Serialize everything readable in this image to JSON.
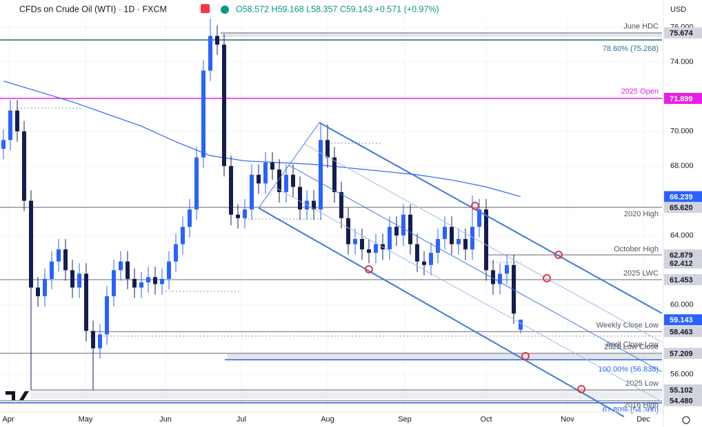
{
  "chart_data": {
    "type": "candlestick",
    "header": {
      "title": "CFDs on Crude Oil (WTI) · 1D · FXCM",
      "quote": "O58.572 H59.168 L58.357 C59.143 +0.571 (+0.97%)",
      "currency": "USD"
    },
    "up_color": "#2962ff",
    "down_color": "#131d4f",
    "xlim": [
      -0.5,
      95.5
    ],
    "ylim": [
      53.56,
      77.57
    ],
    "xticks": [
      {
        "value": 0.7,
        "label": "Apr"
      },
      {
        "value": 11.9,
        "label": "May"
      },
      {
        "value": 23.5,
        "label": "Jun"
      },
      {
        "value": 34.5,
        "label": "Jul"
      },
      {
        "value": 47,
        "label": "Aug"
      },
      {
        "value": 58.2,
        "label": "Sep"
      },
      {
        "value": 70,
        "label": "Oct"
      },
      {
        "value": 81.8,
        "label": "Nov"
      },
      {
        "value": 92.8,
        "label": "Dec"
      }
    ],
    "yticks": [
      {
        "value": 76,
        "label": "76.000"
      },
      {
        "value": 74,
        "label": "74.000"
      },
      {
        "value": 70,
        "label": "70.000"
      },
      {
        "value": 68,
        "label": "68.000"
      },
      {
        "value": 64,
        "label": "64.000"
      },
      {
        "value": 60,
        "label": "60.000"
      },
      {
        "value": 56,
        "label": "56.000"
      }
    ],
    "ohlc": [
      [
        69.0,
        70.1,
        68.4,
        69.5
      ],
      [
        69.5,
        71.8,
        68.9,
        71.2
      ],
      [
        71.2,
        71.8,
        69.4,
        70.0
      ],
      [
        70.0,
        70.6,
        65.4,
        66.0
      ],
      [
        66.0,
        66.6,
        55.1,
        61.0
      ],
      [
        61.0,
        61.6,
        59.9,
        60.5
      ],
      [
        60.5,
        62.1,
        59.9,
        61.5
      ],
      [
        61.5,
        63.1,
        60.9,
        62.5
      ],
      [
        62.5,
        63.8,
        61.9,
        63.2
      ],
      [
        63.2,
        63.8,
        61.4,
        62.0
      ],
      [
        62.0,
        62.6,
        60.4,
        61.0
      ],
      [
        61.0,
        62.4,
        60.4,
        61.8
      ],
      [
        61.8,
        62.4,
        57.9,
        58.5
      ],
      [
        58.5,
        59.1,
        55.1,
        57.5
      ],
      [
        57.5,
        58.9,
        56.9,
        58.3
      ],
      [
        58.3,
        61.1,
        57.7,
        60.5
      ],
      [
        60.5,
        62.6,
        59.9,
        62.0
      ],
      [
        62.0,
        63.1,
        61.4,
        62.5
      ],
      [
        62.5,
        63.1,
        60.9,
        61.5
      ],
      [
        61.5,
        62.1,
        60.4,
        61.0
      ],
      [
        61.0,
        61.9,
        60.4,
        61.3
      ],
      [
        61.3,
        62.2,
        60.7,
        61.6
      ],
      [
        61.6,
        62.2,
        60.6,
        61.2
      ],
      [
        61.2,
        62.1,
        60.6,
        61.5
      ],
      [
        61.5,
        63.1,
        60.9,
        62.5
      ],
      [
        62.5,
        64.1,
        61.9,
        63.5
      ],
      [
        63.5,
        65.1,
        62.9,
        64.5
      ],
      [
        64.5,
        66.1,
        63.9,
        65.5
      ],
      [
        65.5,
        69.1,
        64.9,
        68.5
      ],
      [
        68.5,
        74.1,
        67.9,
        73.5
      ],
      [
        73.5,
        77.5,
        72.9,
        75.5
      ],
      [
        75.5,
        76.1,
        74.4,
        75.0
      ],
      [
        75.0,
        75.6,
        67.4,
        68.0
      ],
      [
        68.0,
        68.6,
        64.6,
        65.2
      ],
      [
        65.2,
        65.8,
        64.4,
        65.0
      ],
      [
        65.0,
        66.1,
        64.4,
        65.5
      ],
      [
        65.5,
        68.1,
        64.9,
        67.5
      ],
      [
        67.5,
        68.1,
        66.4,
        67.0
      ],
      [
        67.0,
        68.8,
        66.4,
        68.2
      ],
      [
        68.2,
        68.8,
        67.2,
        67.8
      ],
      [
        67.8,
        68.4,
        65.9,
        66.5
      ],
      [
        66.5,
        68.1,
        65.9,
        67.5
      ],
      [
        67.5,
        68.1,
        66.2,
        66.8
      ],
      [
        66.8,
        67.4,
        64.9,
        65.5
      ],
      [
        65.5,
        66.6,
        64.9,
        66.0
      ],
      [
        66.0,
        66.6,
        64.9,
        65.5
      ],
      [
        65.5,
        70.5,
        64.9,
        69.5
      ],
      [
        69.5,
        70.4,
        67.9,
        68.5
      ],
      [
        68.5,
        69.1,
        65.9,
        66.5
      ],
      [
        66.5,
        67.1,
        64.4,
        65.0
      ],
      [
        65.0,
        65.6,
        62.9,
        63.5
      ],
      [
        63.5,
        64.4,
        62.9,
        63.8
      ],
      [
        63.8,
        64.4,
        62.6,
        63.2
      ],
      [
        63.2,
        63.8,
        62.4,
        63.0
      ],
      [
        63.0,
        64.1,
        62.4,
        63.5
      ],
      [
        63.5,
        64.1,
        62.6,
        63.2
      ],
      [
        63.2,
        65.1,
        62.6,
        64.5
      ],
      [
        64.5,
        65.1,
        63.4,
        64.0
      ],
      [
        64.0,
        65.8,
        63.4,
        65.2
      ],
      [
        65.2,
        65.8,
        62.9,
        63.5
      ],
      [
        63.5,
        64.1,
        61.9,
        62.5
      ],
      [
        62.5,
        63.1,
        61.7,
        62.3
      ],
      [
        62.3,
        63.6,
        61.7,
        63.0
      ],
      [
        63.0,
        64.4,
        62.4,
        63.8
      ],
      [
        63.8,
        65.1,
        63.2,
        64.5
      ],
      [
        64.5,
        65.1,
        62.9,
        63.5
      ],
      [
        63.5,
        64.4,
        62.9,
        63.8
      ],
      [
        63.8,
        64.4,
        62.6,
        63.2
      ],
      [
        63.2,
        66.3,
        62.6,
        64.5
      ],
      [
        64.5,
        66.1,
        63.9,
        65.5
      ],
      [
        65.5,
        66.1,
        61.4,
        62.0
      ],
      [
        62.0,
        62.6,
        60.6,
        61.2
      ],
      [
        61.2,
        62.4,
        60.6,
        61.8
      ],
      [
        61.8,
        62.9,
        61.2,
        62.3
      ],
      [
        62.3,
        62.9,
        58.9,
        59.5
      ],
      [
        58.572,
        59.168,
        58.357,
        59.143
      ]
    ],
    "moving_average": {
      "color": "#2962ff",
      "x": [
        0,
        5,
        10,
        15,
        20,
        25,
        30,
        35,
        40,
        45,
        50,
        55,
        60,
        65,
        70,
        75
      ],
      "values": [
        72.9,
        72.3,
        71.7,
        71.0,
        70.3,
        69.4,
        68.6,
        68.3,
        68.2,
        68.1,
        67.9,
        67.7,
        67.5,
        67.2,
        66.8,
        66.239
      ]
    },
    "levels": [
      {
        "text": "June HDC",
        "value": 75.674,
        "color": "#9598a1",
        "text_color": "#50535e"
      },
      {
        "text": "78.60% (75.268)",
        "value": 75.268,
        "color": "#22695f",
        "text_color": "#2a6f8f"
      },
      {
        "text": "2025 Open",
        "value": 71.899,
        "color": "#e91ee0",
        "text_color": "#e91ee0"
      },
      {
        "text": "2020 High",
        "value": 65.62,
        "color": "#9598a1",
        "text_color": "#50535e"
      },
      {
        "text": "October High",
        "value": 62.879,
        "color": "#9598a1",
        "text_color": "#50535e"
      },
      {
        "text": "2025 LWC",
        "value": 61.453,
        "color": "#9598a1",
        "text_color": "#50535e"
      },
      {
        "text": "Weekly Close Low",
        "value": 58.463,
        "color": "#9598a1",
        "text_color": "#50535e"
      },
      {
        "text": "April Close Low",
        "value": 57.7,
        "color": "#9598a1",
        "text_color": "#50535e"
      },
      {
        "text": "2025 Low Close",
        "value": 57.209,
        "color": "#9598a1",
        "text_color": "#50535e"
      },
      {
        "text": "100.00% (56.838)",
        "value": 56.838,
        "color": "#1e5bd6",
        "text_color": "#2962ff"
      },
      {
        "text": "2025 Low",
        "value": 55.102,
        "color": "#9598a1",
        "text_color": "#50535e"
      },
      {
        "text": "61.80% (54.360)",
        "value": 54.36,
        "color": "#1e5bd6",
        "text_color": "#2962ff"
      },
      {
        "text": "2016 High",
        "value": 54.48,
        "color": "#9598a1",
        "text_color": "#50535e"
      }
    ],
    "price_labels": [
      {
        "value": 75.674,
        "label": "75.674",
        "bg": "#d1d4dc",
        "fg": "#131722"
      },
      {
        "value": 71.899,
        "label": "71.899",
        "bg": "#e91ee0",
        "fg": "#ffffff"
      },
      {
        "value": 66.239,
        "label": "66.239",
        "bg": "#2962ff",
        "fg": "#ffffff"
      },
      {
        "value": 65.62,
        "label": "65.620",
        "bg": "#d1d4dc",
        "fg": "#131722"
      },
      {
        "value": 62.412,
        "label": "62.412",
        "bg": "#d1d4dc",
        "fg": "#131722"
      },
      {
        "value": 62.879,
        "label": "62.879",
        "bg": "#d1d4dc",
        "fg": "#131722"
      },
      {
        "value": 61.453,
        "label": "61.453",
        "bg": "#d1d4dc",
        "fg": "#131722"
      },
      {
        "value": 59.143,
        "label": "59.143",
        "bg": "#2962ff",
        "fg": "#ffffff"
      },
      {
        "value": 58.463,
        "label": "58.463",
        "bg": "#d1d4dc",
        "fg": "#131722"
      },
      {
        "value": 57.209,
        "label": "57.209",
        "bg": "#d1d4dc",
        "fg": "#131722"
      },
      {
        "value": 55.102,
        "label": "55.102",
        "bg": "#d1d4dc",
        "fg": "#131722"
      },
      {
        "value": 54.48,
        "label": "54.480",
        "bg": "#d1d4dc",
        "fg": "#131722"
      }
    ]
  }
}
